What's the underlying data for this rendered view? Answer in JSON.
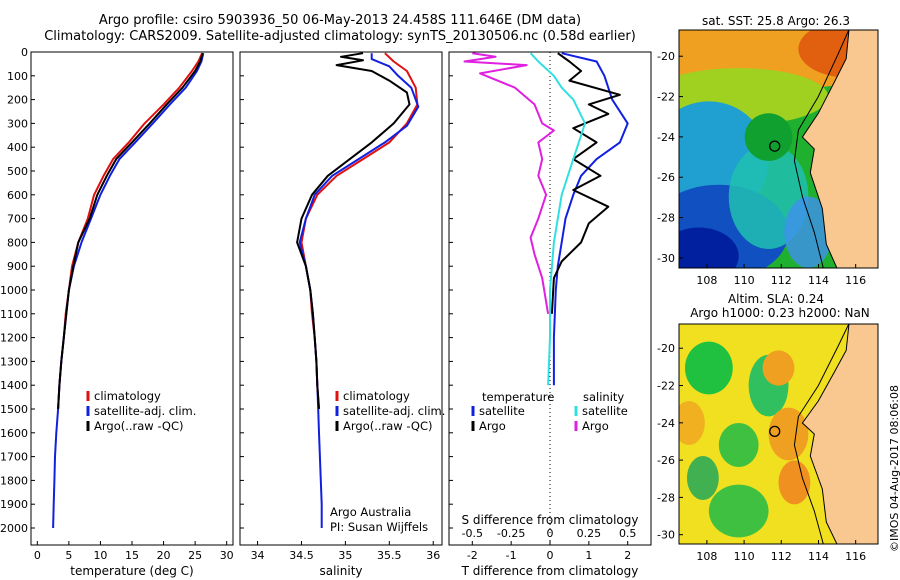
{
  "header": {
    "line1": "Argo profile: csiro 5903936_50 06-May-2013 24.458S 111.646E (DM data)",
    "line2": "Climatology: CARS2009. Satellite-adjusted climatology: synTS_20130506.nc (0.58d earlier)"
  },
  "colors": {
    "red": "#e01010",
    "blue": "#1020e0",
    "black": "#000000",
    "cyan": "#30e0e0",
    "magenta": "#e020e0"
  },
  "chart_data": [
    {
      "type": "line",
      "name": "temperature-profile",
      "xlabel": "temperature (deg C)",
      "ylabel": "",
      "xlim": [
        -1,
        31
      ],
      "ylim": [
        2100,
        0
      ],
      "xticks": [
        0,
        5,
        10,
        15,
        20,
        25,
        30
      ],
      "yticks": [
        0,
        100,
        200,
        300,
        400,
        500,
        600,
        700,
        800,
        900,
        1000,
        1100,
        1200,
        1300,
        1400,
        1500,
        1600,
        1700,
        1800,
        1900,
        2000
      ],
      "legend": [
        "climatology",
        "satellite-adj. clim.",
        "Argo(..raw -QC)"
      ],
      "series": [
        {
          "name": "climatology",
          "color": "red",
          "points": [
            [
              26.1,
              5
            ],
            [
              25.5,
              40
            ],
            [
              24.5,
              80
            ],
            [
              22.5,
              150
            ],
            [
              20,
              220
            ],
            [
              17,
              300
            ],
            [
              14.5,
              380
            ],
            [
              12,
              450
            ],
            [
              10.5,
              520
            ],
            [
              9,
              600
            ],
            [
              8,
              700
            ],
            [
              6.5,
              800
            ],
            [
              5.5,
              900
            ],
            [
              5,
              1000
            ],
            [
              4.5,
              1100
            ],
            [
              4.2,
              1200
            ],
            [
              3.8,
              1300
            ],
            [
              3.5,
              1400
            ],
            [
              3.3,
              1500
            ]
          ]
        },
        {
          "name": "satellite-adj. clim.",
          "color": "blue",
          "points": [
            [
              26.3,
              5
            ],
            [
              26,
              40
            ],
            [
              25.3,
              80
            ],
            [
              23.5,
              150
            ],
            [
              21,
              220
            ],
            [
              18.3,
              300
            ],
            [
              15.5,
              380
            ],
            [
              13,
              450
            ],
            [
              11.5,
              520
            ],
            [
              10,
              600
            ],
            [
              8.5,
              700
            ],
            [
              7,
              800
            ],
            [
              5.8,
              900
            ],
            [
              5,
              1000
            ],
            [
              4.6,
              1100
            ],
            [
              4.2,
              1200
            ],
            [
              3.8,
              1300
            ],
            [
              3.5,
              1400
            ],
            [
              3.3,
              1500
            ],
            [
              3,
              1600
            ],
            [
              2.8,
              1700
            ],
            [
              2.7,
              1800
            ],
            [
              2.6,
              1900
            ],
            [
              2.5,
              2000
            ]
          ]
        },
        {
          "name": "Argo(..raw -QC)",
          "color": "black",
          "points": [
            [
              26.2,
              5
            ],
            [
              25.8,
              40
            ],
            [
              25,
              80
            ],
            [
              23,
              150
            ],
            [
              20.5,
              220
            ],
            [
              17.8,
              300
            ],
            [
              15,
              380
            ],
            [
              12.5,
              450
            ],
            [
              11,
              520
            ],
            [
              9.5,
              600
            ],
            [
              8.3,
              700
            ],
            [
              6.5,
              800
            ],
            [
              5.7,
              900
            ],
            [
              5,
              1000
            ],
            [
              4.6,
              1100
            ],
            [
              4.2,
              1200
            ],
            [
              3.8,
              1300
            ],
            [
              3.5,
              1400
            ],
            [
              3.3,
              1500
            ]
          ]
        }
      ]
    },
    {
      "type": "line",
      "name": "salinity-profile",
      "xlabel": "salinity",
      "ylabel": "",
      "xlim": [
        33.8,
        36.1
      ],
      "ylim": [
        2100,
        0
      ],
      "xticks": [
        34,
        34.5,
        35,
        35.5,
        36
      ],
      "legend": [
        "climatology",
        "satellite-adj. clim.",
        "Argo(..raw -QC)"
      ],
      "annotation": [
        "Argo Australia",
        "PI: Susan Wijffels"
      ],
      "series": [
        {
          "name": "climatology",
          "color": "red",
          "points": [
            [
              35.45,
              5
            ],
            [
              35.55,
              40
            ],
            [
              35.7,
              80
            ],
            [
              35.8,
              150
            ],
            [
              35.82,
              220
            ],
            [
              35.7,
              300
            ],
            [
              35.5,
              380
            ],
            [
              35.2,
              450
            ],
            [
              34.9,
              520
            ],
            [
              34.68,
              600
            ],
            [
              34.55,
              700
            ],
            [
              34.5,
              800
            ],
            [
              34.55,
              900
            ],
            [
              34.6,
              1000
            ],
            [
              34.62,
              1100
            ],
            [
              34.65,
              1200
            ],
            [
              34.67,
              1300
            ],
            [
              34.68,
              1400
            ],
            [
              34.7,
              1500
            ]
          ]
        },
        {
          "name": "satellite-adj. clim.",
          "color": "blue",
          "points": [
            [
              35.3,
              5
            ],
            [
              35.3,
              30
            ],
            [
              35.5,
              60
            ],
            [
              35.6,
              100
            ],
            [
              35.75,
              150
            ],
            [
              35.83,
              230
            ],
            [
              35.7,
              310
            ],
            [
              35.45,
              380
            ],
            [
              35.15,
              450
            ],
            [
              34.85,
              520
            ],
            [
              34.65,
              600
            ],
            [
              34.55,
              700
            ],
            [
              34.48,
              800
            ],
            [
              34.55,
              900
            ],
            [
              34.6,
              1000
            ],
            [
              34.63,
              1100
            ],
            [
              34.65,
              1200
            ],
            [
              34.67,
              1300
            ],
            [
              34.68,
              1400
            ],
            [
              34.69,
              1500
            ],
            [
              34.7,
              1600
            ],
            [
              34.71,
              1700
            ],
            [
              34.72,
              1800
            ],
            [
              34.73,
              1900
            ],
            [
              34.73,
              2000
            ]
          ]
        },
        {
          "name": "Argo(..raw -QC)",
          "color": "black",
          "points": [
            [
              35.2,
              5
            ],
            [
              34.95,
              20
            ],
            [
              35.2,
              35
            ],
            [
              34.9,
              55
            ],
            [
              35.3,
              80
            ],
            [
              35.5,
              120
            ],
            [
              35.7,
              170
            ],
            [
              35.73,
              220
            ],
            [
              35.55,
              300
            ],
            [
              35.3,
              380
            ],
            [
              35.05,
              450
            ],
            [
              34.8,
              520
            ],
            [
              34.62,
              600
            ],
            [
              34.5,
              700
            ],
            [
              34.45,
              800
            ],
            [
              34.55,
              900
            ],
            [
              34.6,
              1000
            ],
            [
              34.63,
              1100
            ],
            [
              34.65,
              1200
            ],
            [
              34.67,
              1300
            ],
            [
              34.68,
              1400
            ],
            [
              34.7,
              1500
            ]
          ]
        }
      ]
    },
    {
      "type": "line",
      "name": "difference-profile",
      "xlabel": "T difference from climatology",
      "toplabel": "S difference from climatology",
      "xlim": [
        -2.6,
        2.6
      ],
      "ylim": [
        2100,
        0
      ],
      "xticks": [
        -2,
        -1,
        0,
        1,
        2
      ],
      "top_ticks": [
        "-0.5",
        "-0.25",
        "0",
        "0.25",
        "0.5"
      ],
      "top_tick_values": [
        -2,
        -1,
        0,
        1,
        2
      ],
      "legend_headers": [
        "temperature",
        "salinity"
      ],
      "legend": [
        "satellite",
        "Argo",
        "satellite",
        "Argo"
      ],
      "series": [
        {
          "name": "temperature satellite",
          "color": "blue",
          "points": [
            [
              0.3,
              5
            ],
            [
              1.2,
              40
            ],
            [
              1.4,
              100
            ],
            [
              1.6,
              200
            ],
            [
              2,
              300
            ],
            [
              1.8,
              380
            ],
            [
              1.2,
              450
            ],
            [
              0.8,
              520
            ],
            [
              0.6,
              600
            ],
            [
              0.4,
              700
            ],
            [
              0.3,
              800
            ],
            [
              0.2,
              900
            ],
            [
              0.15,
              1000
            ],
            [
              0.1,
              1200
            ],
            [
              0.1,
              1400
            ]
          ]
        },
        {
          "name": "temperature Argo",
          "color": "black",
          "points": [
            [
              0.2,
              5
            ],
            [
              0.5,
              40
            ],
            [
              0.8,
              80
            ],
            [
              0.5,
              120
            ],
            [
              1.8,
              180
            ],
            [
              1,
              220
            ],
            [
              1.5,
              260
            ],
            [
              0.6,
              320
            ],
            [
              1.2,
              380
            ],
            [
              0.6,
              450
            ],
            [
              1.3,
              520
            ],
            [
              0.6,
              580
            ],
            [
              1.5,
              650
            ],
            [
              1,
              720
            ],
            [
              0.8,
              800
            ],
            [
              0.3,
              880
            ],
            [
              0.1,
              950
            ],
            [
              0.05,
              1100
            ]
          ]
        },
        {
          "name": "salinity satellite",
          "color": "cyan",
          "points": [
            [
              -0.5,
              5
            ],
            [
              -0.3,
              40
            ],
            [
              0.1,
              100
            ],
            [
              0.3,
              150
            ],
            [
              0.6,
              200
            ],
            [
              0.9,
              300
            ],
            [
              0.7,
              400
            ],
            [
              0.5,
              500
            ],
            [
              0.3,
              600
            ],
            [
              0.1,
              800
            ],
            [
              0,
              1000
            ],
            [
              0,
              1200
            ],
            [
              -0.05,
              1400
            ]
          ]
        },
        {
          "name": "salinity Argo",
          "color": "magenta",
          "points": [
            [
              -2,
              5
            ],
            [
              -1.4,
              20
            ],
            [
              -2.2,
              40
            ],
            [
              -0.6,
              55
            ],
            [
              -1.8,
              90
            ],
            [
              -0.9,
              150
            ],
            [
              -0.4,
              220
            ],
            [
              -0.2,
              300
            ],
            [
              0.1,
              330
            ],
            [
              -0.3,
              380
            ],
            [
              -0.2,
              450
            ],
            [
              -0.3,
              520
            ],
            [
              -0.1,
              600
            ],
            [
              -0.3,
              700
            ],
            [
              -0.5,
              780
            ],
            [
              -0.4,
              850
            ],
            [
              -0.2,
              950
            ],
            [
              -0.05,
              1100
            ]
          ]
        }
      ]
    },
    {
      "type": "heatmap",
      "name": "sst-map",
      "title": "sat. SST: 25.8 Argo: 26.3",
      "xticks": [
        "108",
        "110",
        "112",
        "114",
        "116"
      ],
      "yticks": [
        "-20",
        "-22",
        "-24",
        "-26",
        "-28",
        "-30"
      ],
      "xlim": [
        106.5,
        117.2
      ],
      "ylim": [
        -30.5,
        -18.7
      ],
      "marker": [
        111.646,
        -24.458
      ]
    },
    {
      "type": "heatmap",
      "name": "sla-map",
      "title": [
        "Altim. SLA: 0.24",
        "Argo h1000: 0.23 h2000: NaN"
      ],
      "xticks": [
        "108",
        "110",
        "112",
        "114",
        "116"
      ],
      "yticks": [
        "-20",
        "-22",
        "-24",
        "-26",
        "-28",
        "-30"
      ],
      "xlim": [
        106.5,
        117.2
      ],
      "ylim": [
        -30.5,
        -18.7
      ],
      "marker": [
        111.646,
        -24.458
      ]
    }
  ],
  "footer": {
    "stamp": "©IMOS 04-Aug-2017 08:06:08"
  }
}
